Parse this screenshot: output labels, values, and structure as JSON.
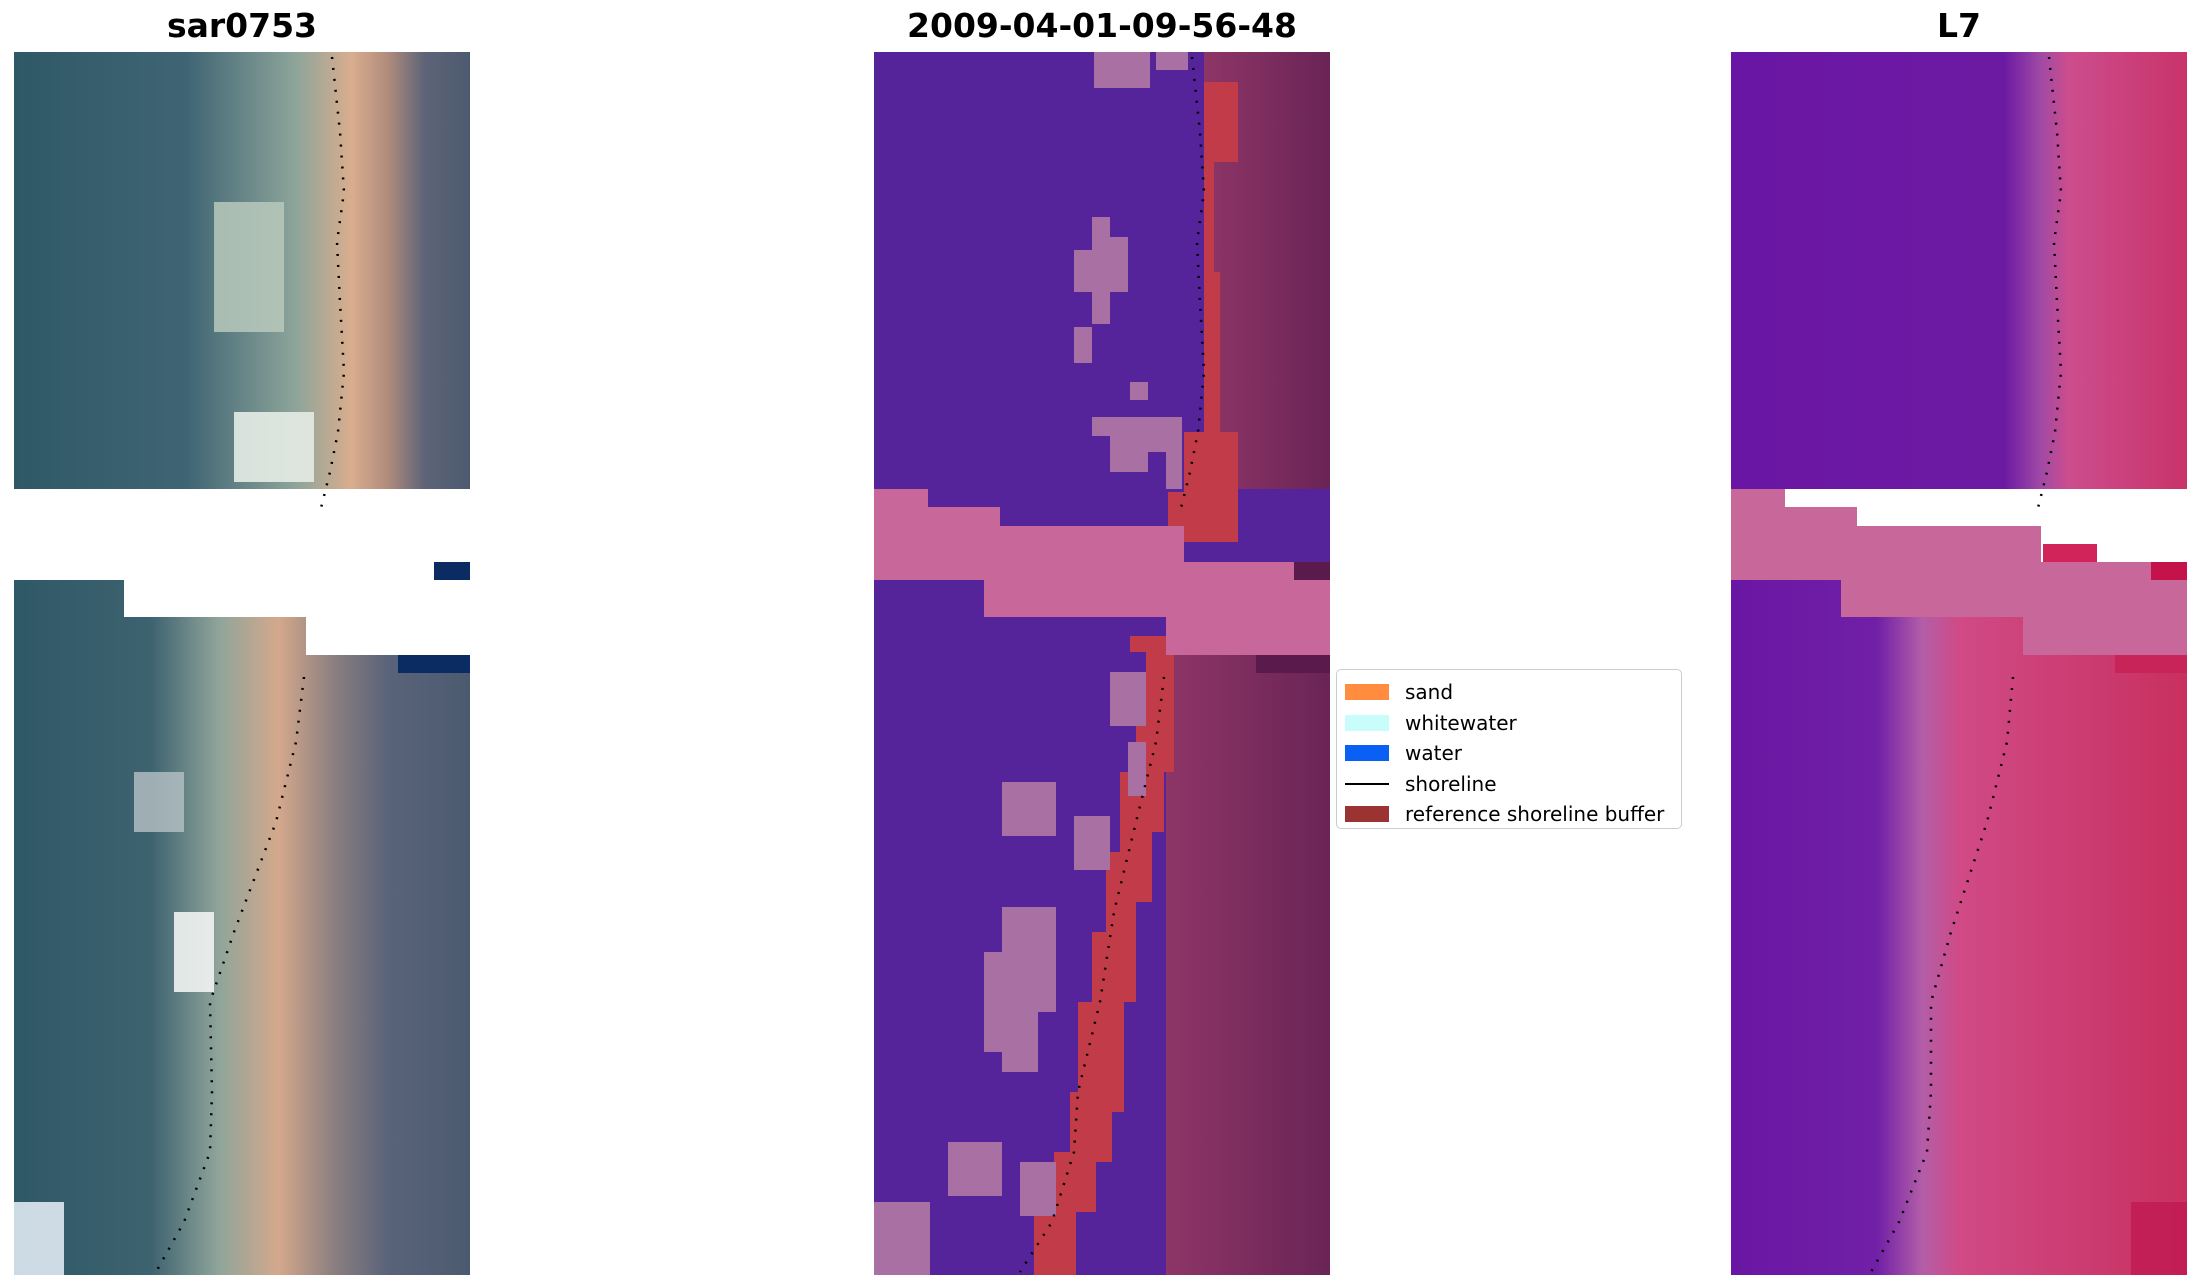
{
  "titles": {
    "left": "sar0753",
    "middle": "2009-04-01-09-56-48",
    "right": "L7"
  },
  "legend": {
    "items": [
      {
        "label": "sand",
        "color": "#ff8c3f",
        "kind": "patch"
      },
      {
        "label": "whitewater",
        "color": "#c9fdfb",
        "kind": "patch"
      },
      {
        "label": "water",
        "color": "#0a5ff5",
        "kind": "patch"
      },
      {
        "label": "shoreline",
        "color": "#000000",
        "kind": "line"
      },
      {
        "label": "reference shoreline buffer",
        "color": "#9b3333",
        "kind": "patch"
      }
    ]
  },
  "colors": {
    "rgb_water": "#3a5c72",
    "rgb_sand": "#d7a98b",
    "rgb_land": "#4e5c74",
    "class_water": "#55239a",
    "class_noise": "#a870a3",
    "class_buffer": "#c13b49",
    "class_land": "#7a2d5e",
    "class_gap": "#c8679a",
    "index_water": "#6a16a4",
    "index_land": "#cb3668",
    "index_gap": "#c8679a"
  }
}
